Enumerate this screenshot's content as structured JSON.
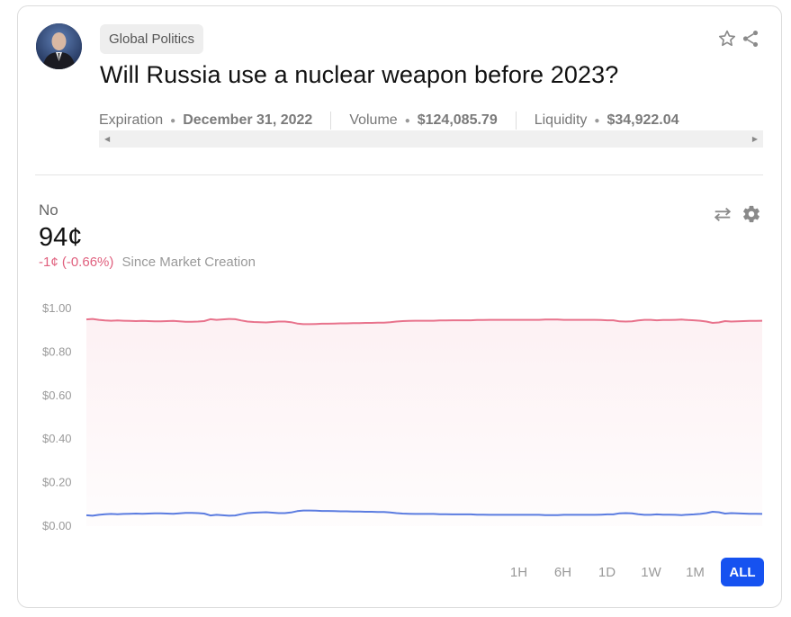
{
  "market": {
    "category": "Global Politics",
    "title": "Will Russia use a nuclear weapon before 2023?",
    "expiration_label": "Expiration",
    "expiration_value": "December 31, 2022",
    "volume_label": "Volume",
    "volume_value": "$124,085.79",
    "liquidity_label": "Liquidity",
    "liquidity_value": "$34,922.04"
  },
  "outcome": {
    "label": "No",
    "price": "94¢",
    "change": "-1¢  (-0.66%)",
    "since": "Since Market Creation"
  },
  "icons": {
    "star": "star-icon",
    "share": "share-icon",
    "swap": "swap-arrows-icon",
    "settings": "gear-icon"
  },
  "colors": {
    "no_line": "#e8738c",
    "yes_line": "#5b7ce0",
    "active_range": "#1652f0",
    "change": "#e0607e"
  },
  "ranges": [
    "1H",
    "6H",
    "1D",
    "1W",
    "1M",
    "ALL"
  ],
  "active_range": "ALL",
  "chart_data": {
    "type": "line",
    "ylim": [
      0,
      1
    ],
    "yticks": [
      "$1.00",
      "$0.80",
      "$0.60",
      "$0.40",
      "$0.20",
      "$0.00"
    ],
    "yticks_values": [
      1.0,
      0.8,
      0.6,
      0.4,
      0.2,
      0.0
    ],
    "grid": false,
    "series": [
      {
        "color": "#e8738c",
        "values": [
          0.95,
          0.952,
          0.948,
          0.945,
          0.944,
          0.945,
          0.944,
          0.943,
          0.942,
          0.943,
          0.942,
          0.941,
          0.941,
          0.942,
          0.943,
          0.941,
          0.939,
          0.939,
          0.94,
          0.942,
          0.951,
          0.948,
          0.95,
          0.952,
          0.951,
          0.945,
          0.94,
          0.938,
          0.937,
          0.936,
          0.938,
          0.94,
          0.94,
          0.937,
          0.931,
          0.928,
          0.928,
          0.929,
          0.93,
          0.93,
          0.931,
          0.932,
          0.932,
          0.933,
          0.933,
          0.934,
          0.934,
          0.935,
          0.935,
          0.937,
          0.94,
          0.942,
          0.943,
          0.944,
          0.944,
          0.944,
          0.944,
          0.945,
          0.945,
          0.946,
          0.946,
          0.946,
          0.946,
          0.947,
          0.947,
          0.948,
          0.948,
          0.948,
          0.948,
          0.948,
          0.948,
          0.948,
          0.948,
          0.948,
          0.949,
          0.949,
          0.949,
          0.948,
          0.948,
          0.948,
          0.948,
          0.948,
          0.948,
          0.947,
          0.946,
          0.946,
          0.941,
          0.94,
          0.941,
          0.945,
          0.948,
          0.948,
          0.946,
          0.947,
          0.947,
          0.948,
          0.949,
          0.947,
          0.946,
          0.944,
          0.94,
          0.934,
          0.936,
          0.942,
          0.94,
          0.941,
          0.942,
          0.943,
          0.943,
          0.944
        ]
      },
      {
        "color": "#5b7ce0",
        "values": [
          0.05,
          0.048,
          0.052,
          0.055,
          0.056,
          0.055,
          0.056,
          0.057,
          0.058,
          0.057,
          0.058,
          0.059,
          0.059,
          0.058,
          0.057,
          0.059,
          0.061,
          0.061,
          0.06,
          0.058,
          0.049,
          0.052,
          0.05,
          0.048,
          0.049,
          0.055,
          0.06,
          0.062,
          0.063,
          0.064,
          0.062,
          0.06,
          0.06,
          0.063,
          0.069,
          0.072,
          0.072,
          0.071,
          0.07,
          0.07,
          0.069,
          0.068,
          0.068,
          0.067,
          0.067,
          0.066,
          0.066,
          0.065,
          0.065,
          0.063,
          0.06,
          0.058,
          0.057,
          0.056,
          0.056,
          0.056,
          0.056,
          0.055,
          0.055,
          0.054,
          0.054,
          0.054,
          0.054,
          0.053,
          0.053,
          0.052,
          0.052,
          0.052,
          0.052,
          0.052,
          0.052,
          0.052,
          0.052,
          0.052,
          0.051,
          0.051,
          0.051,
          0.052,
          0.052,
          0.052,
          0.052,
          0.052,
          0.052,
          0.053,
          0.054,
          0.054,
          0.059,
          0.06,
          0.059,
          0.055,
          0.052,
          0.052,
          0.054,
          0.053,
          0.053,
          0.052,
          0.051,
          0.053,
          0.054,
          0.056,
          0.06,
          0.066,
          0.064,
          0.058,
          0.06,
          0.059,
          0.058,
          0.057,
          0.057,
          0.056
        ]
      }
    ]
  }
}
